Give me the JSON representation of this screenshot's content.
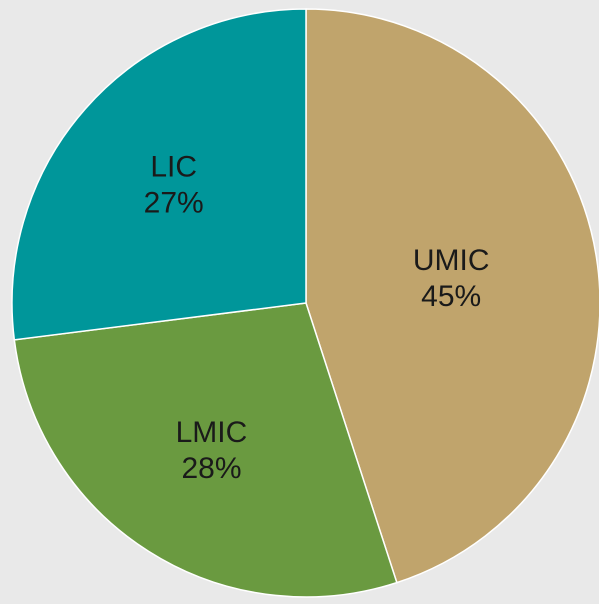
{
  "chart_data": {
    "type": "pie",
    "categories": [
      "UMIC",
      "LMIC",
      "LIC"
    ],
    "values": [
      45,
      28,
      27
    ],
    "value_labels": [
      "45%",
      "28%",
      "27%"
    ],
    "colors": [
      "#c0a46c",
      "#6a9a40",
      "#00969a"
    ]
  }
}
